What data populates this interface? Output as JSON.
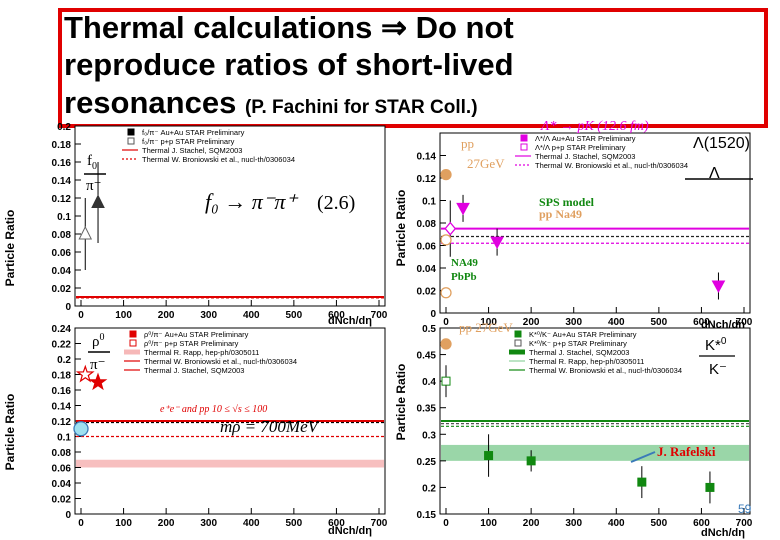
{
  "title": {
    "line1": "Thermal calculations ⇒ Do not",
    "line2": "reproduce ratios of short-lived",
    "line3": "resonances",
    "line3_small": "(P. Fachini for STAR Coll.)"
  },
  "page_number": "59",
  "colors": {
    "title_border": "#e00000",
    "magenta": "#e000e0",
    "red": "#e00000",
    "green_band": "#8fd19e",
    "pink_band": "#f6b8b8",
    "orange_point": "#e0a060",
    "cyan_point": "#9fe0f0"
  },
  "chart_data": [
    {
      "id": "f0",
      "type": "scatter",
      "ylabel": "Particle Ratio",
      "xlabel": "dNch/dη",
      "ylim": [
        0,
        0.2
      ],
      "yticks": [
        "0",
        "0.02",
        "0.04",
        "0.06",
        "0.08",
        "0.1",
        "0.12",
        "0.14",
        "0.16",
        "0.18",
        "0.2"
      ],
      "ratio_num": "f",
      "ratio_num_sub": "0",
      "ratio_den": "π⁻",
      "formula_main": "f₀ → π⁻π⁺",
      "formula_val": "(2.6)",
      "legend": [
        "f₀/π⁻ Au+Au STAR Preliminary",
        "f₀/π⁻ p+p STAR Preliminary",
        "Thermal J. Stachel, SQM2003",
        "Thermal W. Broniowski et al., nucl-th/0306034"
      ],
      "series": [
        {
          "name": "f₀/π⁻ Au+Au STAR Preliminary",
          "x": [
            40
          ],
          "y": [
            0.115
          ],
          "err": [
            0.045
          ]
        },
        {
          "name": "f₀/π⁻ p+p STAR Preliminary",
          "x": [
            10
          ],
          "y": [
            0.08
          ],
          "err": [
            0.04
          ]
        }
      ],
      "hlines": [
        0.01,
        0.009
      ]
    },
    {
      "id": "lambda",
      "type": "scatter",
      "ylabel": "Particle Ratio",
      "xlabel": "dNch/dη",
      "ylim": [
        0,
        0.16
      ],
      "yticks": [
        "0",
        "0.02",
        "0.04",
        "0.06",
        "0.08",
        "0.1",
        "0.12",
        "0.14"
      ],
      "ratio_num": "Λ(1520)",
      "ratio_den": "Λ",
      "formula_top": "Λ* → pK (12.6 fm)",
      "legend": [
        "Λ*/Λ Au+Au STAR Preliminary",
        "Λ*/Λ p+p STAR Preliminary",
        "Thermal J. Stachel, SQM2003",
        "Thermal W. Broniowski et al., nucl-th/0306034"
      ],
      "annotations": [
        "pp",
        "27GeV",
        "SPS model",
        "pp Na49",
        "NA49",
        "PbPb"
      ],
      "series": [
        {
          "name": "Λ*/Λ Au+Au STAR Preliminary",
          "x": [
            40,
            120,
            640
          ],
          "y": [
            0.093,
            0.063,
            0.024
          ],
          "err": [
            0.012,
            0.012,
            0.012
          ]
        },
        {
          "name": "Λ*/Λ p+p STAR Preliminary",
          "x": [
            10
          ],
          "y": [
            0.075
          ],
          "err": [
            0.025
          ]
        },
        {
          "name": "pp 27GeV",
          "x": [
            0
          ],
          "y": [
            0.123
          ],
          "err": [
            0
          ]
        },
        {
          "name": "NA49 pp",
          "x": [
            0
          ],
          "y": [
            0.065
          ],
          "err": [
            0
          ]
        },
        {
          "name": "NA49 PbPb",
          "x": [
            0
          ],
          "y": [
            0.018
          ],
          "err": [
            0
          ]
        }
      ],
      "hlines": [
        0.075,
        0.068,
        0.062
      ]
    },
    {
      "id": "rho",
      "type": "scatter",
      "ylabel": "Particle Ratio",
      "xlabel": "dNch/dη",
      "ylim": [
        0,
        0.24
      ],
      "yticks": [
        "0",
        "0.02",
        "0.04",
        "0.06",
        "0.08",
        "0.1",
        "0.12",
        "0.14",
        "0.16",
        "0.18",
        "0.2",
        "0.22",
        "0.24"
      ],
      "ratio_num": "ρ",
      "ratio_num_sup": "0",
      "ratio_den": "π⁻",
      "formula_main": "mρ = 700MeV",
      "note": "e⁺e⁻ and pp 10 ≤ √s ≤ 100",
      "legend": [
        "ρ⁰/π⁻ Au+Au STAR Preliminary",
        "ρ⁰/π⁻ p+p STAR Preliminary",
        "Thermal R. Rapp, hep-ph/0305011",
        "Thermal W. Broniowski et al., nucl-th/0306034",
        "Thermal J. Stachel, SQM2003"
      ],
      "series": [
        {
          "name": "ρ⁰/π⁻ Au+Au STAR Preliminary",
          "x": [
            40
          ],
          "y": [
            0.17
          ],
          "err": [
            0
          ]
        },
        {
          "name": "ρ⁰/π⁻ p+p STAR Preliminary",
          "x": [
            10
          ],
          "y": [
            0.18
          ],
          "err": [
            0
          ]
        },
        {
          "name": "e⁺e⁻ and pp",
          "x": [
            0
          ],
          "y": [
            0.11
          ],
          "err": [
            0
          ]
        }
      ],
      "hlines": [
        0.12,
        0.118,
        0.1
      ],
      "band": [
        0.06,
        0.07
      ]
    },
    {
      "id": "kstar",
      "type": "scatter",
      "ylabel": "Particle Ratio",
      "xlabel": "dNch/dη",
      "ylim": [
        0.15,
        0.5
      ],
      "yticks": [
        "0.15",
        "0.2",
        "0.25",
        "0.3",
        "0.35",
        "0.4",
        "0.45",
        "0.5"
      ],
      "ratio_num": "K*",
      "ratio_num_sup": "0",
      "ratio_den": "K⁻",
      "credit": "J. Rafelski",
      "annotation": "pp 27GeV",
      "legend": [
        "K*⁰/K⁻ Au+Au STAR Preliminary",
        "K*⁰/K⁻ p+p STAR Preliminary",
        "Thermal J. Stachel, SQM2003",
        "Thermal R. Rapp, hep-ph/0305011",
        "Thermal W. Broniowski et al., nucl-th/0306034"
      ],
      "series": [
        {
          "name": "K*⁰/K⁻ Au+Au STAR Preliminary",
          "x": [
            100,
            200,
            460,
            620
          ],
          "y": [
            0.26,
            0.25,
            0.21,
            0.2
          ],
          "err": [
            0.04,
            0.02,
            0.03,
            0.03
          ]
        },
        {
          "name": "K*⁰/K⁻ p+p STAR Preliminary",
          "x": [
            0
          ],
          "y": [
            0.4
          ],
          "err": [
            0.03
          ]
        },
        {
          "name": "pp 27GeV",
          "x": [
            0
          ],
          "y": [
            0.47
          ],
          "err": [
            0
          ]
        }
      ],
      "hlines": [
        0.325,
        0.32,
        0.315
      ],
      "band": [
        0.25,
        0.28
      ]
    }
  ]
}
